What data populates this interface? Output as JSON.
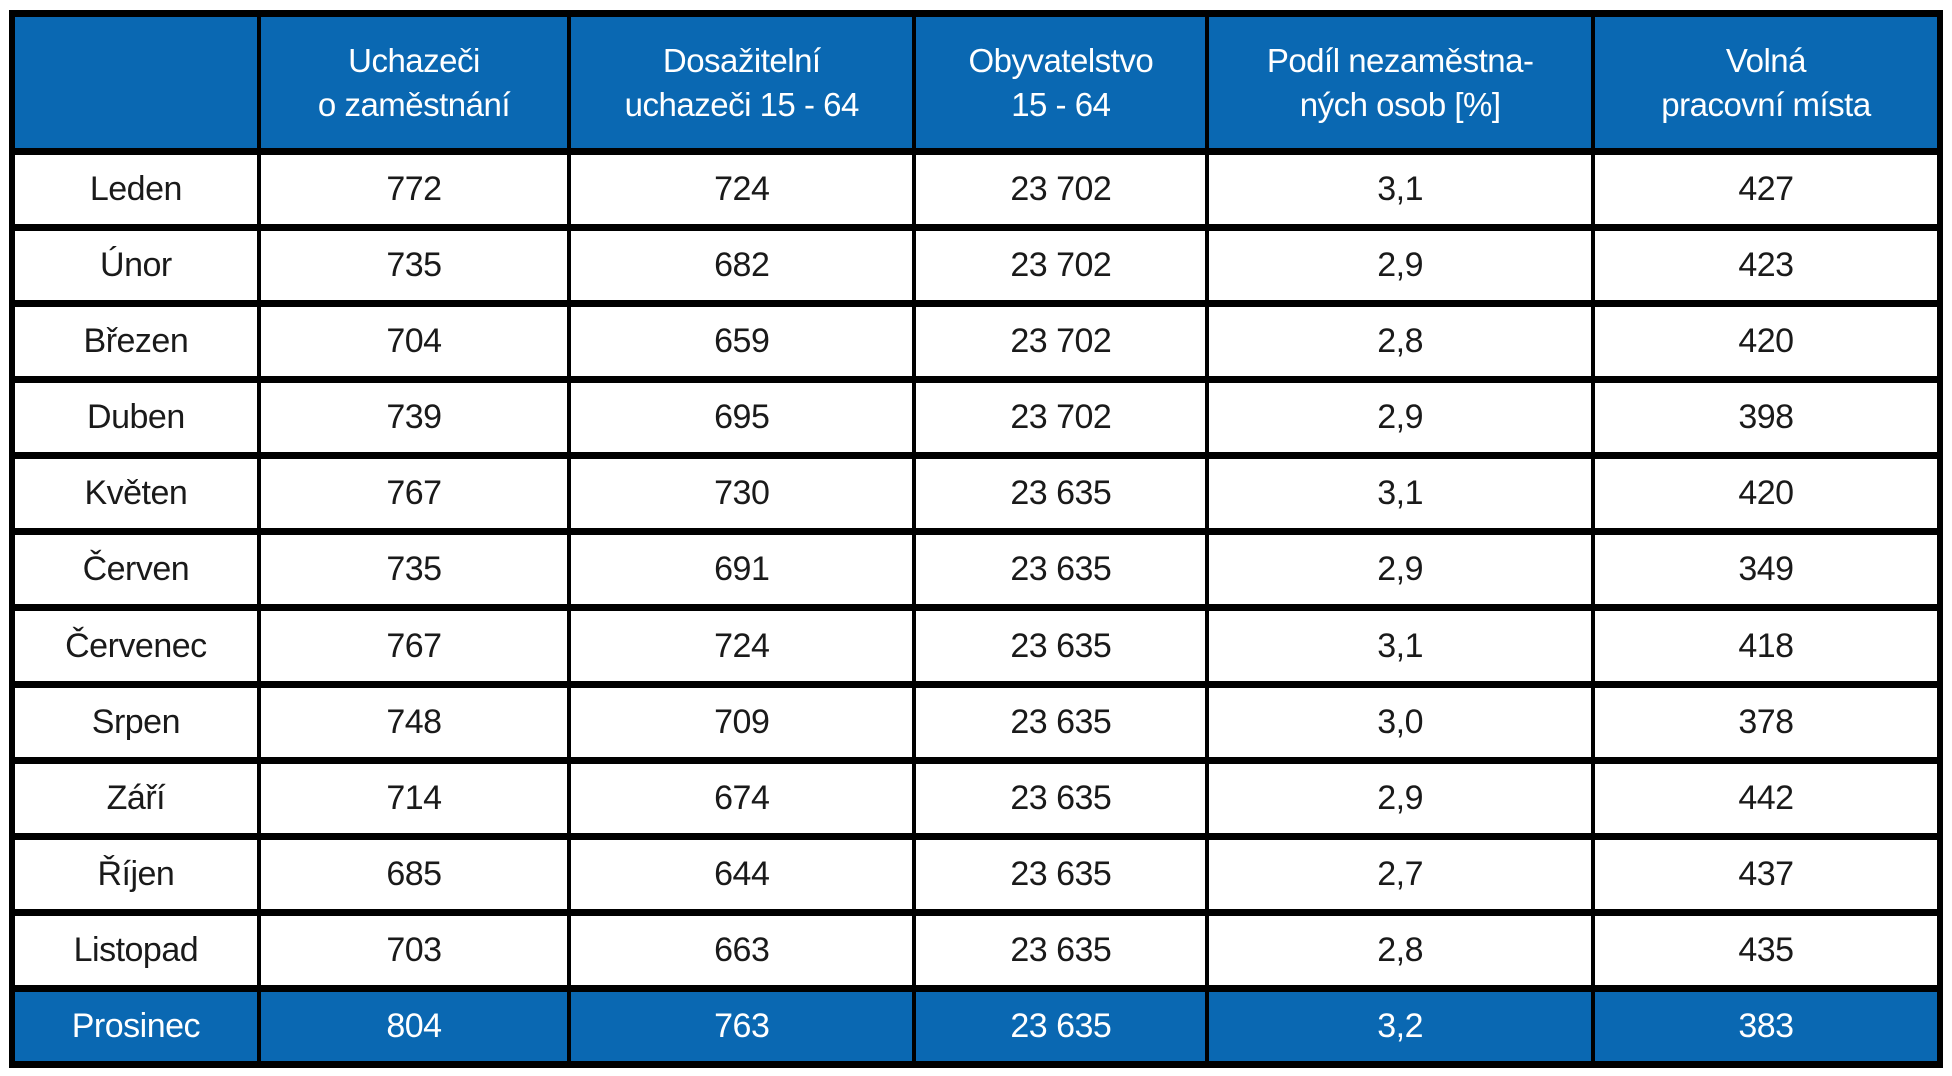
{
  "table": {
    "columns": [
      {
        "label": ""
      },
      {
        "label": "Uchazeči\no zaměstnání"
      },
      {
        "label": "Dosažitelní\nuchazeči 15 - 64"
      },
      {
        "label": "Obyvatelstvo\n15 - 64"
      },
      {
        "label": "Podíl nezaměstna-\nných osob [%]"
      },
      {
        "label": "Volná\npracovní místa"
      }
    ],
    "rows": [
      {
        "month": "Leden",
        "values": [
          "772",
          "724",
          "23 702",
          "3,1",
          "427"
        ],
        "highlight": false
      },
      {
        "month": "Únor",
        "values": [
          "735",
          "682",
          "23 702",
          "2,9",
          "423"
        ],
        "highlight": false
      },
      {
        "month": "Březen",
        "values": [
          "704",
          "659",
          "23 702",
          "2,8",
          "420"
        ],
        "highlight": false
      },
      {
        "month": "Duben",
        "values": [
          "739",
          "695",
          "23 702",
          "2,9",
          "398"
        ],
        "highlight": false
      },
      {
        "month": "Květen",
        "values": [
          "767",
          "730",
          "23 635",
          "3,1",
          "420"
        ],
        "highlight": false
      },
      {
        "month": "Červen",
        "values": [
          "735",
          "691",
          "23 635",
          "2,9",
          "349"
        ],
        "highlight": false
      },
      {
        "month": "Červenec",
        "values": [
          "767",
          "724",
          "23 635",
          "3,1",
          "418"
        ],
        "highlight": false
      },
      {
        "month": "Srpen",
        "values": [
          "748",
          "709",
          "23 635",
          "3,0",
          "378"
        ],
        "highlight": false
      },
      {
        "month": "Září",
        "values": [
          "714",
          "674",
          "23 635",
          "2,9",
          "442"
        ],
        "highlight": false
      },
      {
        "month": "Říjen",
        "values": [
          "685",
          "644",
          "23 635",
          "2,7",
          "437"
        ],
        "highlight": false
      },
      {
        "month": "Listopad",
        "values": [
          "703",
          "663",
          "23 635",
          "2,8",
          "435"
        ],
        "highlight": false
      },
      {
        "month": "Prosinec",
        "values": [
          "804",
          "763",
          "23 635",
          "3,2",
          "383"
        ],
        "highlight": true
      }
    ],
    "colors": {
      "header_bg": "#0A68B2",
      "header_text": "#FFFFFF",
      "border": "#000000",
      "body_text": "#1A1A1A"
    }
  },
  "chart_data": {
    "type": "table",
    "title": "",
    "columns": [
      "",
      "Uchazeči o zaměstnání",
      "Dosažitelní uchazeči 15 - 64",
      "Obyvatelstvo 15 - 64",
      "Podíl nezaměstnaných osob [%]",
      "Volná pracovní místa"
    ],
    "rows": [
      [
        "Leden",
        772,
        724,
        23702,
        3.1,
        427
      ],
      [
        "Únor",
        735,
        682,
        23702,
        2.9,
        423
      ],
      [
        "Březen",
        704,
        659,
        23702,
        2.8,
        420
      ],
      [
        "Duben",
        739,
        695,
        23702,
        2.9,
        398
      ],
      [
        "Květen",
        767,
        730,
        23635,
        3.1,
        420
      ],
      [
        "Červen",
        735,
        691,
        23635,
        2.9,
        349
      ],
      [
        "Červenec",
        767,
        724,
        23635,
        3.1,
        418
      ],
      [
        "Srpen",
        748,
        709,
        23635,
        3.0,
        378
      ],
      [
        "Září",
        714,
        674,
        23635,
        2.9,
        442
      ],
      [
        "Říjen",
        685,
        644,
        23635,
        2.7,
        437
      ],
      [
        "Listopad",
        703,
        663,
        23635,
        2.8,
        435
      ],
      [
        "Prosinec",
        804,
        763,
        23635,
        3.2,
        383
      ]
    ],
    "highlighted_row": "Prosinec",
    "decimal_separator": ",",
    "thousands_separator": " "
  }
}
